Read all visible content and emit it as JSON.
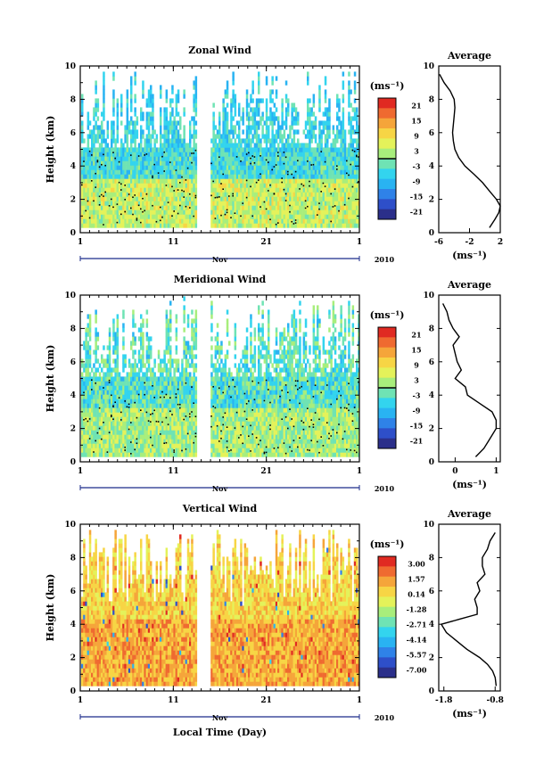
{
  "colors": {
    "scale": [
      "#2b2f8a",
      "#2e4fc9",
      "#2f82e8",
      "#29b3f2",
      "#33d4ee",
      "#6fe3b4",
      "#a8ee7c",
      "#e4f25a",
      "#f7d545",
      "#f5a53a",
      "#ef6a30",
      "#e02a22"
    ],
    "contour": "#000000",
    "zero_line": "#000000"
  },
  "chart_data": [
    {
      "type": "heatmap",
      "title": "Zonal Wind",
      "ylabel": "Height (km)",
      "xlabel": "",
      "x_ticks": [
        "1",
        "11",
        "21",
        "1"
      ],
      "x_month_label": "Nov",
      "x_year_label": "2010",
      "y_ticks": [
        "0",
        "2",
        "4",
        "6",
        "8",
        "10"
      ],
      "ylim": [
        0,
        10
      ],
      "xlim": [
        1,
        31
      ],
      "gap_days": [
        13.5,
        14.9
      ],
      "colorbar_unit": "(ms⁻¹)",
      "colorbar_ticks": [
        "21",
        "15",
        "9",
        "3",
        "-3",
        "-9",
        "-15",
        "-21"
      ],
      "colorbar_range": [
        -24,
        24
      ],
      "average": {
        "title": "Average",
        "xlabel": "(ms⁻¹)",
        "x_ticks": [
          "-6",
          "-2",
          "2"
        ],
        "xlim": [
          -6,
          2
        ],
        "y_ticks": [
          "0",
          "2",
          "4",
          "6",
          "8",
          "10"
        ],
        "height": [
          0.3,
          0.8,
          1.2,
          1.6,
          2.0,
          2.5,
          3.0,
          3.5,
          4.0,
          4.5,
          5.0,
          5.5,
          6.0,
          6.5,
          7.0,
          7.5,
          8.0,
          8.5,
          9.0,
          9.5
        ],
        "value": [
          0.6,
          1.3,
          1.8,
          2.0,
          1.5,
          0.6,
          -0.3,
          -1.4,
          -2.6,
          -3.4,
          -3.9,
          -4.1,
          -4.2,
          -4.1,
          -4.0,
          -3.9,
          -4.0,
          -4.5,
          -5.3,
          -5.9
        ]
      }
    },
    {
      "type": "heatmap",
      "title": "Meridional Wind",
      "ylabel": "Height (km)",
      "xlabel": "",
      "x_ticks": [
        "1",
        "11",
        "21",
        "1"
      ],
      "x_month_label": "Nov",
      "x_year_label": "2010",
      "y_ticks": [
        "0",
        "2",
        "4",
        "6",
        "8",
        "10"
      ],
      "ylim": [
        0,
        10
      ],
      "xlim": [
        1,
        31
      ],
      "gap_days": [
        13.5,
        14.9
      ],
      "colorbar_unit": "(ms⁻¹)",
      "colorbar_ticks": [
        "21",
        "15",
        "9",
        "3",
        "-3",
        "-9",
        "-15",
        "-21"
      ],
      "colorbar_range": [
        -24,
        24
      ],
      "average": {
        "title": "Average",
        "xlabel": "(ms⁻¹)",
        "x_ticks": [
          "0",
          "1"
        ],
        "xlim": [
          -0.4,
          1.1
        ],
        "y_ticks": [
          "0",
          "2",
          "4",
          "6",
          "8",
          "10"
        ],
        "height": [
          0.3,
          0.8,
          1.2,
          1.6,
          2.0,
          2.5,
          3.0,
          3.5,
          4.0,
          4.5,
          5.0,
          5.5,
          6.0,
          6.5,
          7.0,
          7.5,
          8.0,
          8.5,
          9.0,
          9.5
        ],
        "value": [
          0.5,
          0.7,
          0.8,
          0.9,
          1.0,
          1.0,
          0.9,
          0.6,
          0.3,
          0.25,
          0.0,
          0.15,
          0.05,
          0.0,
          -0.05,
          0.1,
          -0.05,
          -0.15,
          -0.2,
          -0.3
        ]
      }
    },
    {
      "type": "heatmap",
      "title": "Vertical Wind",
      "ylabel": "Height (km)",
      "xlabel": "Local Time (Day)",
      "x_ticks": [
        "1",
        "11",
        "21",
        "1"
      ],
      "x_month_label": "Nov",
      "x_year_label": "2010",
      "y_ticks": [
        "0",
        "2",
        "4",
        "6",
        "8",
        "10"
      ],
      "ylim": [
        0,
        10
      ],
      "xlim": [
        1,
        31
      ],
      "gap_days": [
        13.5,
        14.9
      ],
      "colorbar_unit": "(ms⁻¹)",
      "colorbar_ticks": [
        "3.00",
        "1.57",
        "0.14",
        "-1.28",
        "-2.71",
        "-4.14",
        "-5.57",
        "-7.00"
      ],
      "colorbar_range": [
        -7.7,
        3.7
      ],
      "average": {
        "title": "Average",
        "xlabel": "(ms⁻¹)",
        "x_ticks": [
          "-1.8",
          "-0.8"
        ],
        "xlim": [
          -1.9,
          -0.7
        ],
        "y_ticks": [
          "0",
          "2",
          "4",
          "6",
          "8",
          "10"
        ],
        "height": [
          0.3,
          0.8,
          1.2,
          1.6,
          2.0,
          2.5,
          3.0,
          3.5,
          4.0,
          4.3,
          4.6,
          5.0,
          5.5,
          6.0,
          6.5,
          7.0,
          7.5,
          8.0,
          8.5,
          9.0,
          9.5
        ],
        "value": [
          -0.78,
          -0.8,
          -0.85,
          -0.95,
          -1.1,
          -1.35,
          -1.55,
          -1.75,
          -1.85,
          -1.5,
          -1.15,
          -1.15,
          -1.2,
          -1.1,
          -1.15,
          -1.0,
          -1.05,
          -1.05,
          -0.95,
          -0.9,
          -0.8
        ]
      }
    }
  ]
}
